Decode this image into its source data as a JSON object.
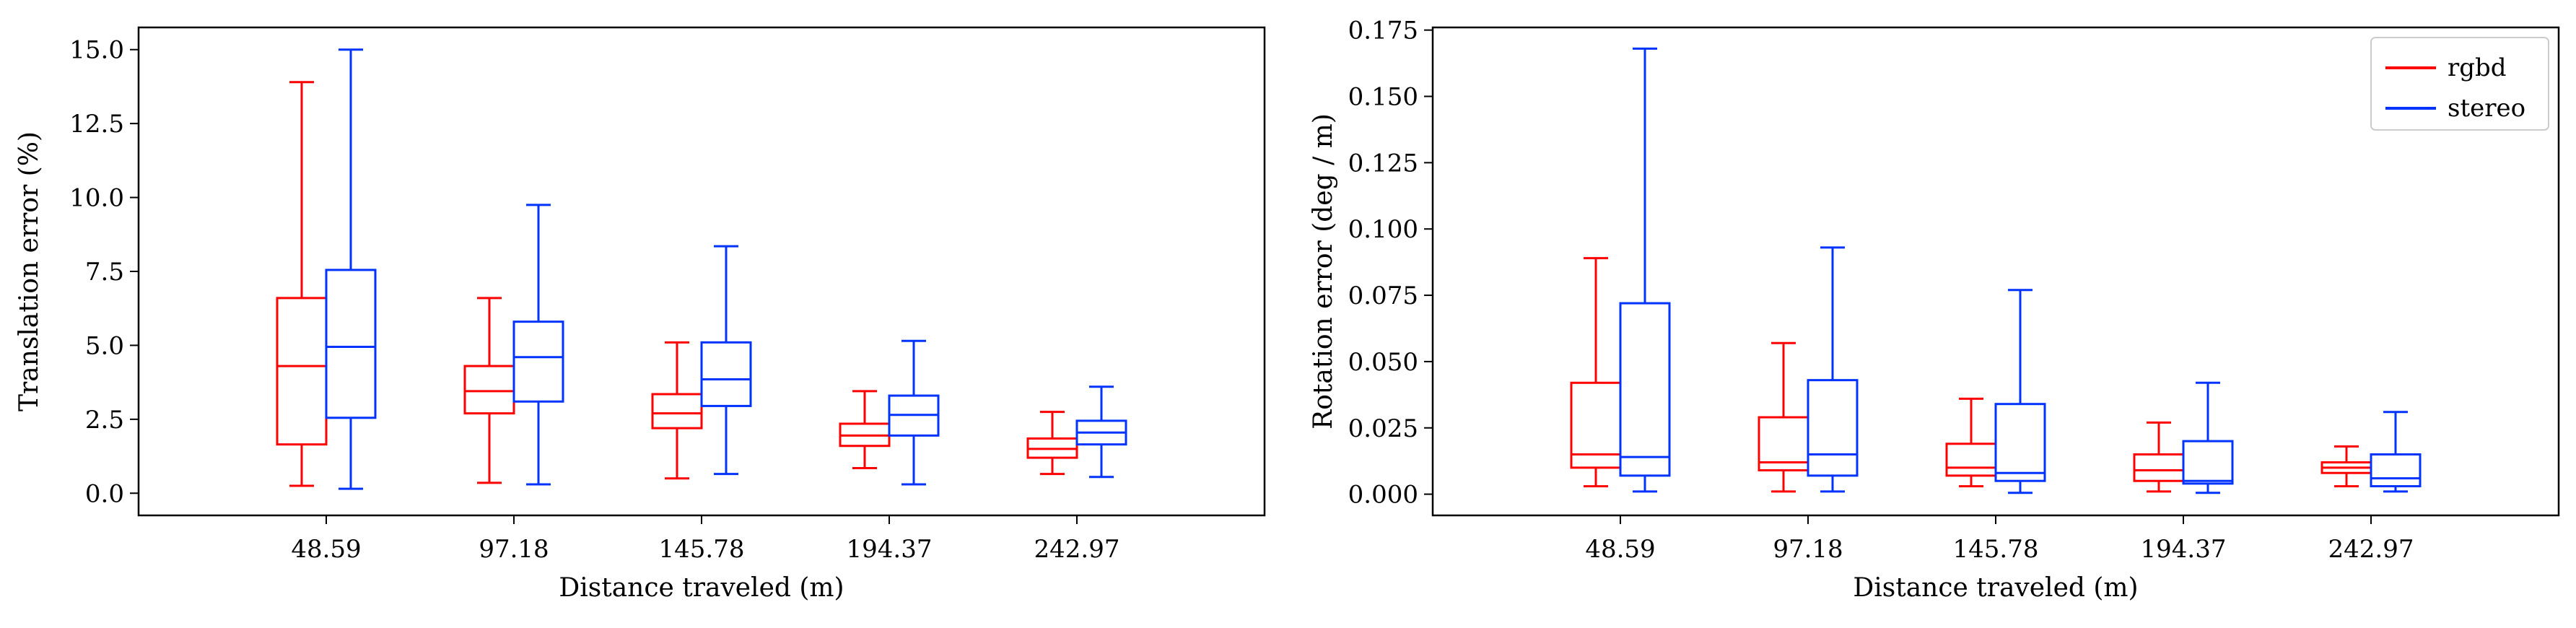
{
  "colors": {
    "rgbd": "#ff0000",
    "stereo": "#0033ff",
    "axis": "#000000"
  },
  "chart_data": [
    {
      "type": "boxplot",
      "title": "",
      "xlabel": "Distance traveled (m)",
      "ylabel": "Translation error (%)",
      "categories": [
        "48.59",
        "97.18",
        "145.78",
        "194.37",
        "242.97"
      ],
      "ylim": [
        -0.75,
        15.75
      ],
      "yticks": [
        0.0,
        2.5,
        5.0,
        7.5,
        10.0,
        12.5,
        15.0
      ],
      "ytick_labels": [
        "0.0",
        "2.5",
        "5.0",
        "7.5",
        "10.0",
        "12.5",
        "15.0"
      ],
      "series": [
        {
          "name": "rgbd",
          "color": "#ff0000",
          "boxes": [
            {
              "whislo": 0.25,
              "q1": 1.65,
              "med": 4.3,
              "q3": 6.6,
              "whishi": 13.9
            },
            {
              "whislo": 0.35,
              "q1": 2.7,
              "med": 3.45,
              "q3": 4.3,
              "whishi": 6.6
            },
            {
              "whislo": 0.5,
              "q1": 2.2,
              "med": 2.7,
              "q3": 3.35,
              "whishi": 5.1
            },
            {
              "whislo": 0.85,
              "q1": 1.6,
              "med": 1.95,
              "q3": 2.35,
              "whishi": 3.45
            },
            {
              "whislo": 0.65,
              "q1": 1.2,
              "med": 1.5,
              "q3": 1.85,
              "whishi": 2.75
            }
          ]
        },
        {
          "name": "stereo",
          "color": "#0033ff",
          "boxes": [
            {
              "whislo": 0.15,
              "q1": 2.55,
              "med": 4.95,
              "q3": 7.55,
              "whishi": 15.0
            },
            {
              "whislo": 0.3,
              "q1": 3.1,
              "med": 4.6,
              "q3": 5.8,
              "whishi": 9.75
            },
            {
              "whislo": 0.65,
              "q1": 2.95,
              "med": 3.85,
              "q3": 5.1,
              "whishi": 8.35
            },
            {
              "whislo": 0.3,
              "q1": 1.95,
              "med": 2.65,
              "q3": 3.3,
              "whishi": 5.15
            },
            {
              "whislo": 0.55,
              "q1": 1.65,
              "med": 2.05,
              "q3": 2.45,
              "whishi": 3.6
            }
          ]
        }
      ]
    },
    {
      "type": "boxplot",
      "title": "",
      "xlabel": "Distance traveled (m)",
      "ylabel": "Rotation error (deg / m)",
      "categories": [
        "48.59",
        "97.18",
        "145.78",
        "194.37",
        "242.97"
      ],
      "ylim": [
        -0.008,
        0.176
      ],
      "yticks": [
        0.0,
        0.025,
        0.05,
        0.075,
        0.1,
        0.125,
        0.15,
        0.175
      ],
      "ytick_labels": [
        "0.000",
        "0.025",
        "0.050",
        "0.075",
        "0.100",
        "0.125",
        "0.150",
        "0.175"
      ],
      "legend": {
        "position": "top-right",
        "entries": [
          "rgbd",
          "stereo"
        ]
      },
      "series": [
        {
          "name": "rgbd",
          "color": "#ff0000",
          "boxes": [
            {
              "whislo": 0.003,
              "q1": 0.01,
              "med": 0.015,
              "q3": 0.042,
              "whishi": 0.089
            },
            {
              "whislo": 0.001,
              "q1": 0.009,
              "med": 0.012,
              "q3": 0.029,
              "whishi": 0.057
            },
            {
              "whislo": 0.003,
              "q1": 0.007,
              "med": 0.01,
              "q3": 0.019,
              "whishi": 0.036
            },
            {
              "whislo": 0.001,
              "q1": 0.005,
              "med": 0.009,
              "q3": 0.015,
              "whishi": 0.027
            },
            {
              "whislo": 0.003,
              "q1": 0.008,
              "med": 0.01,
              "q3": 0.012,
              "whishi": 0.018
            }
          ]
        },
        {
          "name": "stereo",
          "color": "#0033ff",
          "boxes": [
            {
              "whislo": 0.001,
              "q1": 0.007,
              "med": 0.014,
              "q3": 0.072,
              "whishi": 0.168
            },
            {
              "whislo": 0.001,
              "q1": 0.007,
              "med": 0.015,
              "q3": 0.043,
              "whishi": 0.093
            },
            {
              "whislo": 0.0005,
              "q1": 0.005,
              "med": 0.008,
              "q3": 0.034,
              "whishi": 0.077
            },
            {
              "whislo": 0.0005,
              "q1": 0.004,
              "med": 0.005,
              "q3": 0.02,
              "whishi": 0.042
            },
            {
              "whislo": 0.001,
              "q1": 0.003,
              "med": 0.006,
              "q3": 0.015,
              "whishi": 0.031
            }
          ]
        }
      ]
    }
  ]
}
